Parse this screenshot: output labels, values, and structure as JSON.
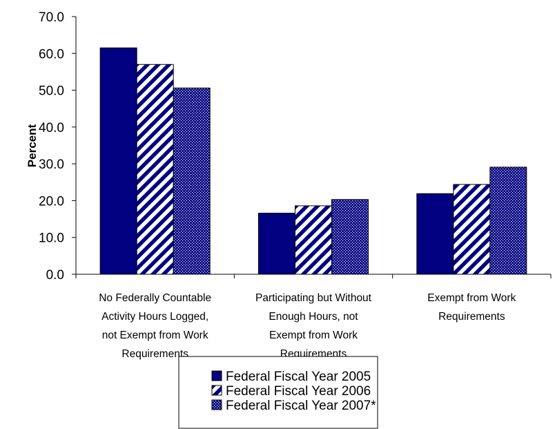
{
  "chart_data": {
    "type": "bar",
    "title": "",
    "xlabel": "",
    "ylabel": "Percent",
    "ylim": [
      0,
      70
    ],
    "yticks": [
      "0.0",
      "10.0",
      "20.0",
      "30.0",
      "40.0",
      "50.0",
      "60.0",
      "70.0"
    ],
    "categories": [
      [
        "No Federally Countable",
        "Activity Hours Logged,",
        "not Exempt from Work",
        "Requirements"
      ],
      [
        "Participating but Without",
        "Enough Hours, not",
        "Exempt from Work",
        "Requirements"
      ],
      [
        "Exempt from Work",
        "Requirements"
      ]
    ],
    "series": [
      {
        "name": "Federal Fiscal Year 2005",
        "pattern": "solid",
        "color": "#000080",
        "values": [
          61.5,
          16.6,
          21.9
        ]
      },
      {
        "name": "Federal Fiscal Year 2006",
        "pattern": "diagonal-stripes",
        "color": "#000080",
        "values": [
          57.0,
          18.6,
          24.4
        ]
      },
      {
        "name": "Federal Fiscal Year 2007*",
        "pattern": "dots",
        "color": "#000080",
        "values": [
          50.6,
          20.3,
          29.1
        ]
      }
    ],
    "grid": false,
    "legend": "bottom"
  }
}
